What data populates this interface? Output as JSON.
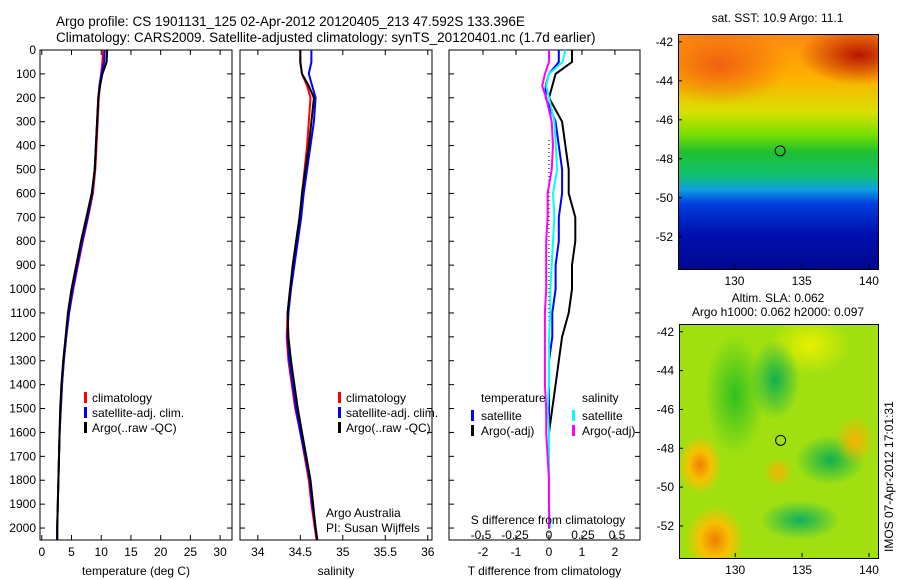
{
  "title_line1": "Argo profile: CS 1901131_125 02-Apr-2012 20120405_213 47.592S 133.396E",
  "title_line2": "Climatology: CARS2009. Satellite-adjusted climatology: synTS_20120401.nc (1.7d earlier)",
  "colors": {
    "climatology": "#ff0000",
    "satellite": "#0000ff",
    "argo": "#000000",
    "sal_satellite": "#00ffff",
    "sal_argo": "#ff00ff"
  },
  "chart_data": [
    {
      "type": "line",
      "xlabel": "temperature (deg C)",
      "ylabel": "",
      "xlim": [
        -0.3,
        32
      ],
      "ylim": [
        2050,
        0
      ],
      "xticks": [
        0,
        5,
        10,
        15,
        20,
        25,
        30
      ],
      "yticks": [
        0,
        100,
        200,
        300,
        400,
        500,
        600,
        700,
        800,
        900,
        1000,
        1100,
        1200,
        1300,
        1400,
        1500,
        1600,
        1700,
        1800,
        1900,
        2000
      ],
      "depth": [
        0,
        50,
        100,
        150,
        200,
        300,
        400,
        500,
        600,
        700,
        800,
        900,
        1000,
        1100,
        1200,
        1300,
        1400,
        1500,
        1600,
        1700,
        1800,
        1900,
        2000,
        2050
      ],
      "series": [
        {
          "name": "climatology",
          "values": [
            10.3,
            10.2,
            10.0,
            9.8,
            9.6,
            9.4,
            9.2,
            9.0,
            8.6,
            7.8,
            6.9,
            6.1,
            5.3,
            4.6,
            4.1,
            3.7,
            3.4,
            3.2,
            3.0,
            2.9,
            2.8,
            2.7,
            2.6,
            2.6
          ]
        },
        {
          "name": "satellite-adj. clim.",
          "values": [
            10.6,
            10.5,
            10.0,
            9.7,
            9.5,
            9.3,
            9.1,
            8.9,
            8.5,
            7.7,
            6.8,
            6.0,
            5.2,
            4.6,
            4.1,
            3.7,
            3.4,
            3.2,
            3.0,
            2.9,
            2.8,
            2.7,
            2.6,
            2.6
          ]
        },
        {
          "name": "Argo(..raw -QC)",
          "values": [
            11.0,
            10.9,
            10.2,
            9.8,
            9.5,
            9.3,
            9.1,
            8.9,
            8.4,
            7.5,
            6.6,
            5.8,
            5.0,
            4.4,
            4.0,
            3.6,
            3.3,
            3.1,
            3.0,
            2.9,
            2.8,
            2.7,
            2.6,
            2.6
          ]
        }
      ]
    },
    {
      "type": "line",
      "xlabel": "salinity",
      "xlim": [
        33.79,
        36.05
      ],
      "ylim": [
        2050,
        0
      ],
      "xticks": [
        34,
        34.5,
        35,
        35.5,
        36
      ],
      "depth": [
        0,
        50,
        100,
        150,
        200,
        300,
        400,
        500,
        600,
        700,
        800,
        900,
        1000,
        1100,
        1200,
        1300,
        1400,
        1500,
        1600,
        1700,
        1800,
        1900,
        2000,
        2050
      ],
      "series": [
        {
          "name": "climatology",
          "values": [
            34.5,
            34.5,
            34.52,
            34.58,
            34.62,
            34.6,
            34.58,
            34.55,
            34.52,
            34.5,
            34.46,
            34.42,
            34.38,
            34.35,
            34.34,
            34.36,
            34.4,
            34.44,
            34.5,
            34.55,
            34.6,
            34.63,
            34.67,
            34.69
          ]
        },
        {
          "name": "satellite-adj. clim.",
          "values": [
            34.63,
            34.63,
            34.6,
            34.64,
            34.68,
            34.66,
            34.62,
            34.58,
            34.54,
            34.51,
            34.47,
            34.43,
            34.39,
            34.36,
            34.35,
            34.37,
            34.41,
            34.45,
            34.5,
            34.56,
            34.61,
            34.64,
            34.68,
            34.7
          ]
        },
        {
          "name": "Argo(..raw -QC)",
          "values": [
            34.5,
            34.5,
            34.52,
            34.6,
            34.66,
            34.63,
            34.6,
            34.56,
            34.52,
            34.49,
            34.45,
            34.41,
            34.38,
            34.35,
            34.36,
            34.39,
            34.43,
            34.47,
            34.52,
            34.57,
            34.62,
            34.65,
            34.68,
            34.7
          ]
        }
      ],
      "annotation": [
        "Argo Australia",
        "PI: Susan Wijffels"
      ]
    },
    {
      "type": "line",
      "xlabel": "T difference from climatology",
      "top_label": "S difference from climatology",
      "xlim": [
        -3.03,
        2.76
      ],
      "ylim": [
        2050,
        0
      ],
      "xticks": [
        -2,
        -1,
        0,
        1,
        2
      ],
      "sticks": [
        -0.5,
        -0.25,
        0,
        0.25,
        0.5
      ],
      "s_scale": 0.2426,
      "depth": [
        0,
        50,
        100,
        150,
        200,
        300,
        400,
        500,
        600,
        700,
        800,
        900,
        1000,
        1100,
        1200,
        1300,
        1400,
        1500,
        1600,
        1700,
        1800,
        1900,
        2000
      ],
      "series": [
        {
          "name": "T satellite",
          "kind": "T",
          "values": [
            0.3,
            0.3,
            0.0,
            -0.1,
            -0.1,
            0.2,
            0.3,
            0.4,
            0.4,
            0.3,
            0.3,
            0.2,
            0.2,
            0.1,
            0.1,
            0.0,
            0.0,
            0.0,
            0.0,
            0.0,
            0.0,
            0.0,
            0.0
          ]
        },
        {
          "name": "T Argo(-adj)",
          "kind": "T",
          "values": [
            0.7,
            0.7,
            0.2,
            0.1,
            0.0,
            0.4,
            0.5,
            0.6,
            0.6,
            0.8,
            0.8,
            0.7,
            0.7,
            0.6,
            0.4,
            0.3,
            0.2,
            0.1,
            0.0,
            0.0,
            0.0,
            0.0,
            0.0
          ]
        },
        {
          "name": "S satellite",
          "kind": "S",
          "values": [
            0.12,
            0.1,
            0.0,
            -0.02,
            0.0,
            0.04,
            0.05,
            0.06,
            0.03,
            0.04,
            0.03,
            0.02,
            0.01,
            0.01,
            0.0,
            0.0,
            0.0,
            -0.01,
            0.0,
            0.0,
            0.0,
            0.0,
            0.01
          ]
        },
        {
          "name": "S Argo(-adj)",
          "kind": "S",
          "values": [
            0.0,
            0.0,
            -0.03,
            -0.05,
            -0.02,
            0.02,
            0.03,
            0.02,
            -0.01,
            -0.01,
            -0.02,
            -0.02,
            -0.02,
            -0.03,
            -0.03,
            -0.03,
            -0.03,
            -0.02,
            -0.02,
            -0.01,
            0.0,
            0.0,
            0.0
          ]
        }
      ],
      "legend": {
        "temperature": "temperature",
        "salinity": "salinity",
        "satellite": "satellite",
        "argo": "Argo(-adj)"
      }
    },
    {
      "type": "heatmap",
      "title": "sat. SST: 10.9 Argo: 11.1",
      "xticks": [
        130,
        135,
        140
      ],
      "yticks": [
        -42,
        -44,
        -46,
        -48,
        -50,
        -52
      ],
      "xlim": [
        125.8,
        140.6
      ],
      "ylim": [
        -53.6,
        -41.6
      ],
      "marker": [
        133.396,
        -47.592
      ]
    },
    {
      "type": "heatmap",
      "title": "Altim. SLA: 0.062",
      "subtitle": "Argo h1000: 0.062 h2000: 0.097",
      "xticks": [
        130,
        135,
        140
      ],
      "yticks": [
        -42,
        -44,
        -46,
        -48,
        -50,
        -52
      ],
      "xlim": [
        125.8,
        140.6
      ],
      "ylim": [
        -53.6,
        -41.6
      ],
      "marker": [
        133.396,
        -47.592
      ]
    }
  ],
  "legend_labels": [
    "climatology",
    "satellite-adj. clim.",
    "Argo(..raw -QC)"
  ],
  "footer": "IMOS 07-Apr-2012 17:01:31"
}
